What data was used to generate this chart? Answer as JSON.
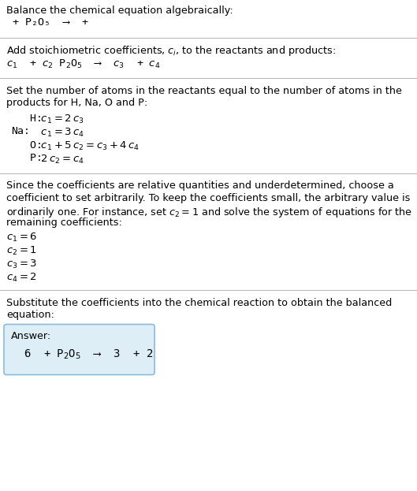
{
  "title_line": "Balance the chemical equation algebraically:",
  "reaction_line": " + P₂O₅  ⟶  + ",
  "section1_title": "Add stoichiometric coefficients, $c_i$, to the reactants and products:",
  "section1_eq": "$c_1$  + $c_2$ P$_2$O$_5$  ⟶  $c_3$  + $c_4$",
  "section2_title_l1": "Set the number of atoms in the reactants equal to the number of atoms in the",
  "section2_title_l2": "products for H, Na, O and P:",
  "section2_lines": [
    [
      "   H:",
      " $c_1 = 2\\,c_3$"
    ],
    [
      "Na:",
      " $c_1 = 3\\,c_4$"
    ],
    [
      "   O:",
      " $c_1 + 5\\,c_2 = c_3 + 4\\,c_4$"
    ],
    [
      "   P:",
      " $2\\,c_2 = c_4$"
    ]
  ],
  "section3_title_lines": [
    "Since the coefficients are relative quantities and underdetermined, choose a",
    "coefficient to set arbitrarily. To keep the coefficients small, the arbitrary value is",
    "ordinarily one. For instance, set $c_2 = 1$ and solve the system of equations for the",
    "remaining coefficients:"
  ],
  "section3_lines": [
    "$c_1 = 6$",
    "$c_2 = 1$",
    "$c_3 = 3$",
    "$c_4 = 2$"
  ],
  "section4_title_l1": "Substitute the coefficients into the chemical reaction to obtain the balanced",
  "section4_title_l2": "equation:",
  "answer_label": "Answer:",
  "answer_eq": "6  + P$_2$O$_5$  ⟶  3  + 2",
  "bg_color": "#ffffff",
  "box_bg_color": "#ddeef6",
  "box_border_color": "#88bbdd",
  "text_color": "#000000",
  "separator_color": "#bbbbbb"
}
